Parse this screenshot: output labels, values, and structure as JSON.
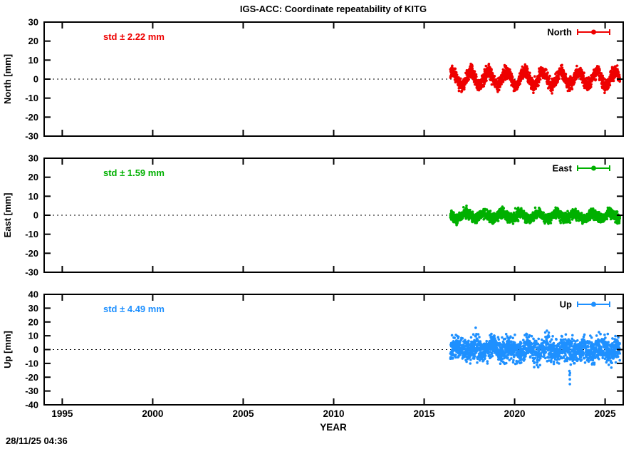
{
  "title": "IGS-ACC: Coordinate repeatability of KITG",
  "timestamp": "28/11/25 04:36",
  "chart_data": {
    "type": "scatter",
    "title": "IGS-ACC: Coordinate repeatability of KITG",
    "xlabel": "YEAR",
    "x_range": [
      1994,
      2026
    ],
    "x_ticks": [
      1995,
      2000,
      2005,
      2010,
      2015,
      2020,
      2025
    ],
    "data_start": 2016.45,
    "data_end": 2025.82,
    "points_per_year": 183,
    "grid": "zero-line-dotted-only",
    "legend_position": "top-right-inside",
    "panels": [
      {
        "name": "North",
        "ylabel": "North [mm]",
        "std_label": "std ± 2.22 mm",
        "std_mm": 2.22,
        "color": "#ee0000",
        "y_range": [
          -30,
          30
        ],
        "y_ticks": [
          30,
          20,
          10,
          0,
          -10,
          -20,
          -30
        ],
        "mean": 0.3,
        "seasonal_amplitude": 3.6,
        "seasonal_phase": 0.3,
        "noise_sigma": 1.7,
        "outliers": []
      },
      {
        "name": "East",
        "ylabel": "East [mm]",
        "std_label": "std ± 1.59 mm",
        "std_mm": 1.59,
        "color": "#00b000",
        "y_range": [
          -30,
          30
        ],
        "y_ticks": [
          30,
          20,
          10,
          0,
          -10,
          -20,
          -30
        ],
        "mean": -0.4,
        "seasonal_amplitude": 1.5,
        "seasonal_phase": 0.05,
        "noise_sigma": 1.3,
        "outliers": []
      },
      {
        "name": "Up",
        "ylabel": "Up [mm]",
        "std_label": "std ± 4.49 mm",
        "std_mm": 4.49,
        "color": "#1e90ff",
        "y_range": [
          -40,
          40
        ],
        "y_ticks": [
          40,
          30,
          20,
          10,
          0,
          -10,
          -20,
          -30,
          -40
        ],
        "mean": 0.0,
        "seasonal_amplitude": 2.0,
        "seasonal_phase": 0.55,
        "noise_sigma": 4.3,
        "outliers": [
          [
            2023.03,
            -15.5
          ],
          [
            2023.04,
            -18.5
          ],
          [
            2023.05,
            -21.5
          ],
          [
            2023.05,
            -25.0
          ],
          [
            2023.06,
            -17.0
          ]
        ]
      }
    ]
  }
}
